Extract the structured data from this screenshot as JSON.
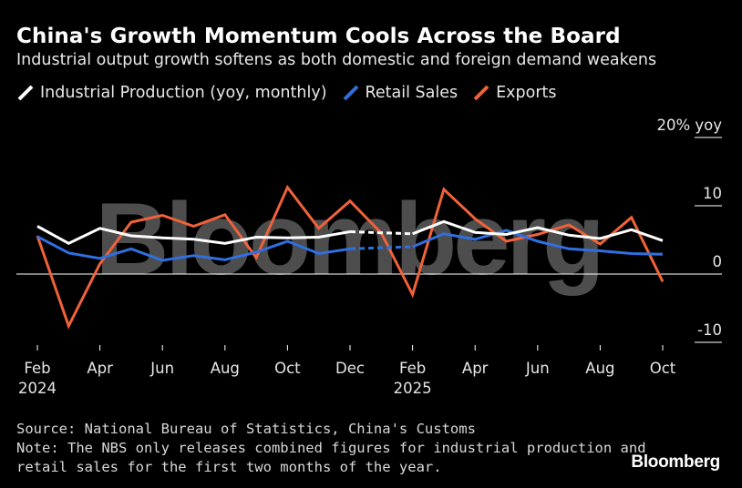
{
  "chart_data": {
    "type": "line",
    "title": "China's Growth Momentum Cools Across the Board",
    "subtitle": "Industrial output growth softens as both domestic and foreign demand weakens",
    "ylabel": "% yoy",
    "ylim": [
      -10,
      20
    ],
    "y_ticks": [
      {
        "value": 20,
        "label": "20% yoy"
      },
      {
        "value": 10,
        "label": "10"
      },
      {
        "value": 0,
        "label": "0"
      },
      {
        "value": -10,
        "label": "-10"
      }
    ],
    "x_ticks": [
      {
        "index": 0,
        "label": "Feb",
        "year": "2024"
      },
      {
        "index": 2,
        "label": "Apr",
        "year": ""
      },
      {
        "index": 4,
        "label": "Jun",
        "year": ""
      },
      {
        "index": 6,
        "label": "Aug",
        "year": ""
      },
      {
        "index": 8,
        "label": "Oct",
        "year": ""
      },
      {
        "index": 10,
        "label": "Dec",
        "year": ""
      },
      {
        "index": 12,
        "label": "Feb",
        "year": "2025"
      },
      {
        "index": 14,
        "label": "Apr",
        "year": ""
      },
      {
        "index": 16,
        "label": "Jun",
        "year": ""
      },
      {
        "index": 18,
        "label": "Aug",
        "year": ""
      },
      {
        "index": 20,
        "label": "Oct",
        "year": ""
      }
    ],
    "x": [
      "2024-02",
      "2024-03",
      "2024-04",
      "2024-05",
      "2024-06",
      "2024-07",
      "2024-08",
      "2024-09",
      "2024-10",
      "2024-11",
      "2024-12",
      "2025-01",
      "2025-02",
      "2025-03",
      "2025-04",
      "2025-05",
      "2025-06",
      "2025-07",
      "2025-08",
      "2025-09",
      "2025-10"
    ],
    "series": [
      {
        "name": "Industrial Production (yoy, monthly)",
        "color": "#ffffff",
        "dashed_gap": [
          10,
          12
        ],
        "values": [
          7.0,
          4.5,
          6.7,
          5.6,
          5.3,
          5.1,
          4.5,
          5.4,
          5.3,
          5.4,
          6.2,
          null,
          5.9,
          7.7,
          6.1,
          5.8,
          6.8,
          5.7,
          5.2,
          6.5,
          4.9
        ]
      },
      {
        "name": "Retail Sales",
        "color": "#2f6fe0",
        "dashed_gap": [
          10,
          12
        ],
        "values": [
          5.5,
          3.1,
          2.3,
          3.7,
          2.0,
          2.7,
          2.1,
          3.2,
          4.8,
          3.0,
          3.7,
          null,
          4.0,
          5.9,
          5.1,
          6.4,
          4.8,
          3.7,
          3.4,
          3.0,
          2.9
        ]
      },
      {
        "name": "Exports",
        "color": "#f0623a",
        "values": [
          5.6,
          -7.6,
          1.5,
          7.6,
          8.6,
          7.0,
          8.7,
          2.4,
          12.7,
          6.7,
          10.7,
          6.0,
          -3.0,
          12.4,
          8.1,
          4.8,
          5.8,
          7.2,
          4.4,
          8.3,
          -1.1
        ]
      }
    ],
    "watermark": "Bloomberg"
  },
  "source": "Source: National Bureau of Statistics, China's Customs",
  "note_line1": "Note: The NBS only releases combined figures for industrial production and",
  "note_line2": "retail sales for the first two months of the year.",
  "brand": "Bloomberg"
}
